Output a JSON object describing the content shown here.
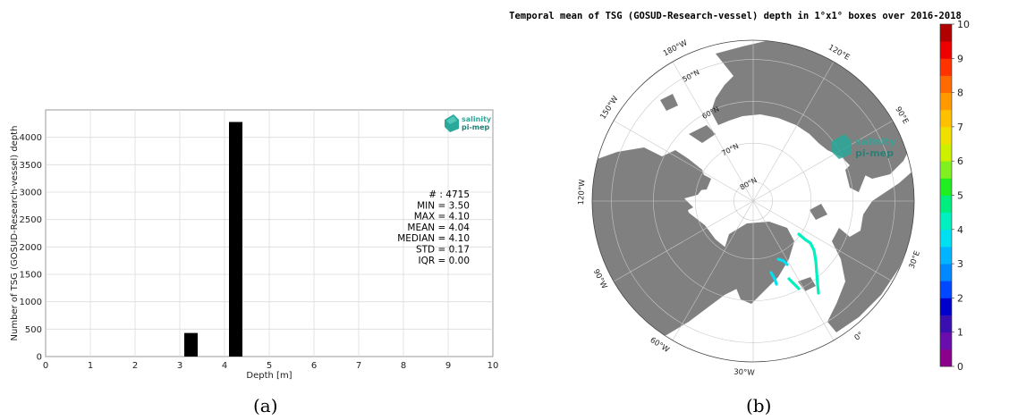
{
  "captions": {
    "a": "(a)",
    "b": "(b)"
  },
  "logo": {
    "line1": "salinity",
    "line2": "pi-mep"
  },
  "chart_data": [
    {
      "type": "bar",
      "xlabel": "Depth [m]",
      "ylabel": "Number of TSG (GOSUD-Research-vessel) depth",
      "xlim": [
        0,
        10
      ],
      "ylim": [
        0,
        4500
      ],
      "xticks": [
        "0",
        "1",
        "2",
        "3",
        "4",
        "5",
        "6",
        "7",
        "8",
        "9",
        "10"
      ],
      "yticks": [
        "0",
        "500",
        "1000",
        "1500",
        "2000",
        "2500",
        "3000",
        "3500",
        "4000"
      ],
      "grid": true,
      "bins": [
        {
          "x0": 3.1,
          "x1": 3.4,
          "value": 430
        },
        {
          "x0": 4.1,
          "x1": 4.4,
          "value": 4280
        }
      ],
      "stats": [
        "# : 4715",
        "MIN = 3.50",
        "MAX =  4.10",
        "MEAN = 4.04",
        "MEDIAN = 4.10",
        "STD = 0.17",
        "IQR = 0.00"
      ]
    },
    {
      "type": "heatmap",
      "title": "Temporal mean of TSG (GOSUD-Research-vessel) depth in 1°x1° boxes over 2016-2018",
      "projection": "north polar stereographic",
      "lon_labels": [
        "180°W",
        "150°W",
        "120°W",
        "90°W",
        "60°W",
        "30°W",
        "0°",
        "30°E",
        "90°E",
        "120°E"
      ],
      "lat_labels": [
        "50°N",
        "60°N",
        "70°N",
        "80°N"
      ],
      "colorbar": {
        "ticks": [
          "0",
          "1",
          "2",
          "3",
          "4",
          "5",
          "6",
          "7",
          "8",
          "9",
          "10"
        ],
        "colors": [
          "#8b008b",
          "#6a0dad",
          "#3a0fb0",
          "#0000cd",
          "#0047ff",
          "#0088ff",
          "#00b4ff",
          "#00e0f0",
          "#00f0c0",
          "#00ee80",
          "#20ee20",
          "#80f020",
          "#ccf000",
          "#f0e000",
          "#ffc000",
          "#ff9900",
          "#ff6a00",
          "#ff3300",
          "#ee0000",
          "#b00000"
        ]
      },
      "observed_value_range": [
        3.5,
        4.1
      ]
    }
  ]
}
